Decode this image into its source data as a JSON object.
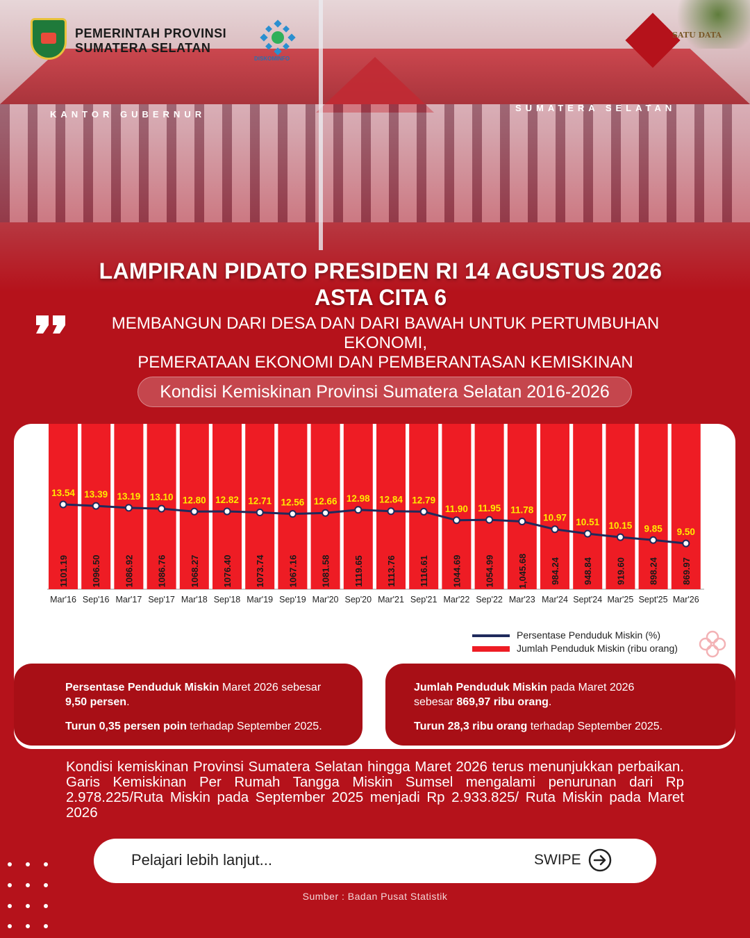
{
  "header": {
    "gov_line1": "PEMERINTAH PROVINSI",
    "gov_line2": "SUMATERA SELATAN",
    "diskom_label": "DISKOMINFO",
    "satudata_label": "SATU DATA",
    "building_left": "KANTOR GUBERNUR",
    "building_right": "SUMATERA SELATAN"
  },
  "title_line1": "LAMPIRAN PIDATO  PRESIDEN RI 14 AGUSTUS 2026",
  "title_line2": "ASTA CITA 6",
  "subtitle_line1": "MEMBANGUN DARI DESA DAN DARI BAWAH UNTUK PERTUMBUHAN EKONOMI,",
  "subtitle_line2": "PEMERATAAN EKONOMI DAN PEMBERANTASAN KEMISKINAN",
  "chart_pill": "Kondisi Kemiskinan Provinsi Sumatera Selatan 2016-2026",
  "chart_data": {
    "type": "bar",
    "categories": [
      "Mar'16",
      "Sep'16",
      "Mar'17",
      "Sep'17",
      "Mar'18",
      "Sep'18",
      "Mar'19",
      "Sep'19",
      "Mar'20",
      "Sep'20",
      "Mar'21",
      "Sep'21",
      "Mar'22",
      "Sep'22",
      "Mar'23",
      "Mar'24",
      "Sept'24",
      "Mar'25",
      "Sept'25",
      "Mar'26"
    ],
    "series": [
      {
        "name": "Jumlah Penduduk Miskin (ribu orang)",
        "type": "bar",
        "color": "#ee1c24",
        "values": [
          1101.19,
          1096.5,
          1086.92,
          1086.76,
          1068.27,
          1076.4,
          1073.74,
          1067.16,
          1081.58,
          1119.65,
          1113.76,
          1116.61,
          1044.69,
          1054.99,
          1045.68,
          984.24,
          948.84,
          919.6,
          898.24,
          869.97
        ],
        "labels": [
          "1101.19",
          "1096.50",
          "1086.92",
          "1086.76",
          "1068.27",
          "1076.40",
          "1073.74",
          "1067.16",
          "1081.58",
          "1119.65",
          "1113.76",
          "1116.61",
          "1044.69",
          "1054.99",
          "1,045.68",
          "984.24",
          "948.84",
          "919.60",
          "898.24",
          "869.97"
        ]
      },
      {
        "name": "Persentase Penduduk Miskin (%)",
        "type": "line",
        "color": "#1f2a5c",
        "values": [
          13.54,
          13.39,
          13.19,
          13.1,
          12.8,
          12.82,
          12.71,
          12.56,
          12.66,
          12.98,
          12.84,
          12.79,
          11.9,
          11.95,
          11.78,
          10.97,
          10.51,
          10.15,
          9.85,
          9.5
        ],
        "labels": [
          "13.54",
          "13.39",
          "13.19",
          "13.10",
          "12.80",
          "12.82",
          "12.71",
          "12.56",
          "12.66",
          "12.98",
          "12.84",
          "12.79",
          "11.90",
          "11.95",
          "11.78",
          "10.97",
          "10.51",
          "10.15",
          "9.85",
          "9.50"
        ],
        "label_color": "#ffea00"
      }
    ],
    "legend": "bottom-right",
    "grid": false
  },
  "stats": {
    "left": {
      "p1_bold": "Persentase Penduduk Miskin",
      "p1_text": " Maret 2026 sebesar",
      "p1_bold2": "9,50 persen",
      "p1_end": ".",
      "p2_bold": "Turun 0,35 persen poin",
      "p2_text": " terhadap September 2025."
    },
    "right": {
      "p1_bold": "Jumlah Penduduk Miskin",
      "p1_text": " pada  Maret 2026",
      "p1_text2": "sebesar ",
      "p1_bold2": "869,97 ribu orang",
      "p1_end": ".",
      "p2_bold": "Turun 28,3 ribu orang",
      "p2_text": " terhadap September 2025."
    }
  },
  "description": "Kondisi kemiskinan Provinsi Sumatera Selatan hingga Maret 2026  terus menunjukkan perbaikan.  Garis Kemiskinan Per Rumah Tangga Miskin Sumsel mengalami penurunan dari Rp 2.978.225/Ruta Miskin pada September 2025 menjadi Rp 2.933.825/ Ruta Miskin pada Maret 2026",
  "cta": {
    "text": "Pelajari lebih lanjut...",
    "swipe": "SWIPE"
  },
  "source": "Sumber : Badan Pusat Statistik"
}
